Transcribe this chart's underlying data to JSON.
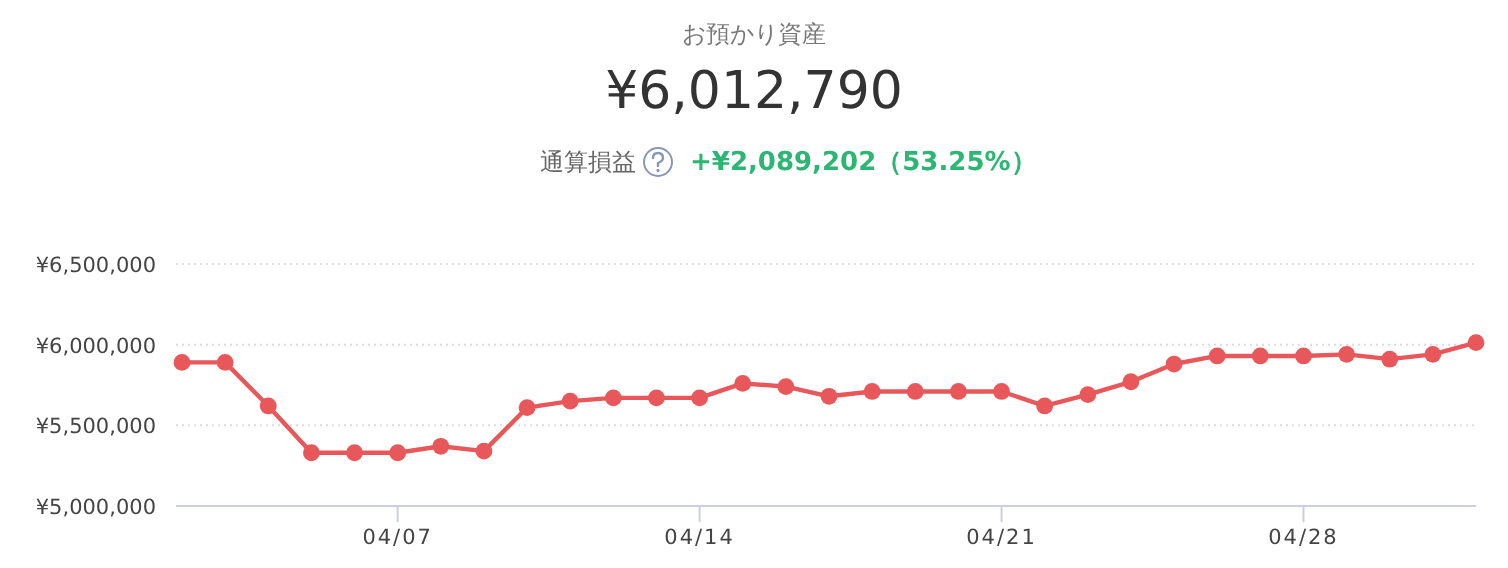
{
  "chart_data": {
    "type": "line",
    "title": "お預かり資産",
    "subtitle": "¥6,012,790",
    "annotations": [
      "通算損益",
      "+¥2,089,202（53.25%）"
    ],
    "x": [
      "--04-02",
      "--04-03",
      "--04-04",
      "--04-05",
      "--04-06",
      "--04-07",
      "--04-08",
      "--04-09",
      "--04-10",
      "--04-11",
      "--04-12",
      "--04-13",
      "--04-14",
      "--04-15",
      "--04-16",
      "--04-17",
      "--04-18",
      "--04-19",
      "--04-20",
      "--04-21",
      "--04-22",
      "--04-23",
      "--04-24",
      "--04-25",
      "--04-26",
      "--04-27",
      "--04-28",
      "--04-29",
      "--04-30",
      "--05-01",
      "--05-02"
    ],
    "series": [
      {
        "color": "#e8585a",
        "values": [
          5890000,
          5890000,
          5620000,
          5330000,
          5330000,
          5330000,
          5370000,
          5340000,
          5610000,
          5650000,
          5670000,
          5670000,
          5670000,
          5760000,
          5740000,
          5680000,
          5710000,
          5710000,
          5710000,
          5710000,
          5620000,
          5690000,
          5770000,
          5880000,
          5930000,
          5930000,
          5930000,
          5940000,
          5910000,
          5940000,
          6012790
        ]
      }
    ],
    "xlim": [
      "--04-02",
      "--05-02"
    ],
    "xticks": [
      {
        "value": "--04-07",
        "label": "04/07"
      },
      {
        "value": "--04-14",
        "label": "04/14"
      },
      {
        "value": "--04-21",
        "label": "04/21"
      },
      {
        "value": "--04-28",
        "label": "04/28"
      }
    ],
    "ylim": [
      5000000,
      6500000
    ],
    "yticks": [
      {
        "value": 5000000,
        "label": "¥5,000,000"
      },
      {
        "value": 5500000,
        "label": "¥5,500,000"
      },
      {
        "value": 6000000,
        "label": "¥6,000,000"
      },
      {
        "value": 6500000,
        "label": "¥6,500,000"
      }
    ],
    "grid": "y",
    "marker": "circle",
    "line_style": "solid"
  }
}
